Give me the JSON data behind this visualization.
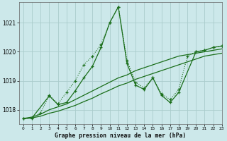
{
  "bg_color": "#cce8ea",
  "grid_color": "#aacccc",
  "line_color": "#1a6e1a",
  "title": "Graphe pression niveau de la mer (hPa)",
  "xlim": [
    -0.5,
    23
  ],
  "ylim": [
    1017.5,
    1021.7
  ],
  "yticks": [
    1018,
    1019,
    1020,
    1021
  ],
  "xticks": [
    0,
    1,
    2,
    3,
    4,
    5,
    6,
    7,
    8,
    9,
    10,
    11,
    12,
    13,
    14,
    15,
    16,
    17,
    18,
    19,
    20,
    21,
    22,
    23
  ],
  "s1_x": [
    0,
    1,
    2,
    3,
    4,
    5,
    6,
    7,
    8,
    9,
    10,
    11,
    12,
    13,
    14,
    15,
    16,
    17,
    18,
    19,
    20,
    21,
    22,
    23
  ],
  "s1_y": [
    1017.7,
    1017.7,
    1017.9,
    1018.5,
    1018.2,
    1018.6,
    1019.0,
    1019.55,
    1019.85,
    1020.25,
    1021.0,
    1021.55,
    1019.7,
    1018.95,
    1018.75,
    1019.1,
    1018.55,
    1018.35,
    1018.7,
    1019.85,
    1020.0,
    1020.05,
    1020.15,
    1020.2
  ],
  "s2_x": [
    0,
    1,
    2,
    3,
    4,
    5,
    6,
    7,
    8,
    9,
    10,
    11,
    12,
    13,
    14,
    15,
    16,
    17,
    18,
    19,
    20,
    21,
    22,
    23
  ],
  "s2_y": [
    1017.7,
    1017.75,
    1017.85,
    1018.0,
    1018.1,
    1018.2,
    1018.35,
    1018.5,
    1018.65,
    1018.8,
    1018.95,
    1019.1,
    1019.2,
    1019.35,
    1019.45,
    1019.55,
    1019.65,
    1019.75,
    1019.85,
    1019.9,
    1019.95,
    1020.0,
    1020.05,
    1020.1
  ],
  "s3_x": [
    0,
    1,
    2,
    3,
    4,
    5,
    6,
    7,
    8,
    9,
    10,
    11,
    12,
    13,
    14,
    15,
    16,
    17,
    18,
    19,
    20,
    21,
    22,
    23
  ],
  "s3_y": [
    1017.7,
    1017.72,
    1017.78,
    1017.88,
    1017.95,
    1018.05,
    1018.15,
    1018.28,
    1018.4,
    1018.55,
    1018.68,
    1018.82,
    1018.92,
    1019.05,
    1019.15,
    1019.25,
    1019.35,
    1019.45,
    1019.55,
    1019.65,
    1019.75,
    1019.85,
    1019.9,
    1019.95
  ],
  "s4_x": [
    0,
    1,
    3,
    4,
    5,
    6,
    7,
    8,
    9,
    10,
    11,
    12,
    13,
    14,
    15,
    16,
    17,
    18,
    20,
    21,
    22,
    23
  ],
  "s4_y": [
    1017.7,
    1017.72,
    1018.48,
    1018.18,
    1018.25,
    1018.65,
    1019.1,
    1019.5,
    1020.15,
    1021.0,
    1021.55,
    1019.6,
    1018.85,
    1018.7,
    1019.1,
    1018.5,
    1018.25,
    1018.6,
    1020.0,
    1020.05,
    1020.15,
    1020.2
  ]
}
